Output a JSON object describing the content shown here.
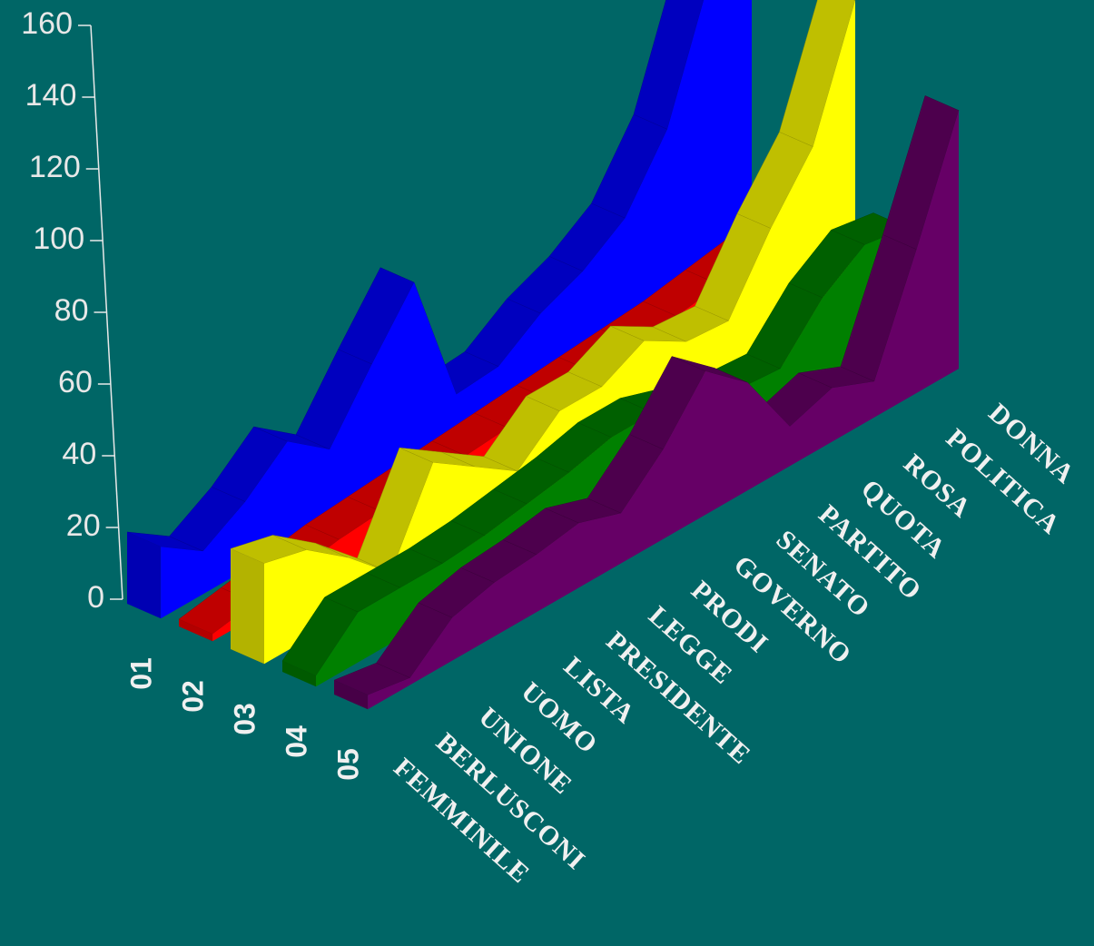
{
  "chart_data": {
    "type": "ribbon3d",
    "categories": [
      "FEMMINILE",
      "BERLUSCONI",
      "UNIONE",
      "UOMO",
      "LISTA",
      "PRESIDENTE",
      "LEGGE",
      "PRODI",
      "GOVERNO",
      "SENATO",
      "PARTITO",
      "QUOTA",
      "ROSA",
      "POLITICA",
      "DONNA"
    ],
    "series": [
      {
        "name": "01",
        "color": "#0000ff",
        "values": [
          20,
          12,
          19,
          29,
          20,
          37,
          53,
          15,
          16,
          24,
          29,
          37,
          55,
          90,
          100
        ]
      },
      {
        "name": "02",
        "color": "#ff0000",
        "values": [
          2,
          4,
          6,
          8,
          9,
          10,
          11,
          12,
          13,
          14,
          15,
          16,
          18,
          20,
          22
        ]
      },
      {
        "name": "03",
        "color": "#ffff00",
        "values": [
          28,
          25,
          16,
          5,
          29,
          21,
          13,
          23,
          23,
          29,
          22,
          21,
          40,
          56,
          90
        ]
      },
      {
        "name": "04",
        "color": "#008000",
        "values": [
          3,
          14,
          14,
          14,
          15,
          17,
          19,
          22,
          22,
          18,
          15,
          14,
          27,
          35,
          33
        ]
      },
      {
        "name": "05",
        "color": "#660066",
        "values": [
          4,
          2,
          12,
          15,
          16,
          18,
          14,
          25,
          40,
          30,
          11,
          15,
          10,
          40,
          72
        ]
      }
    ],
    "ylim": [
      0,
      160
    ],
    "yticks": [
      0,
      20,
      40,
      60,
      80,
      100,
      120,
      140,
      160
    ]
  }
}
